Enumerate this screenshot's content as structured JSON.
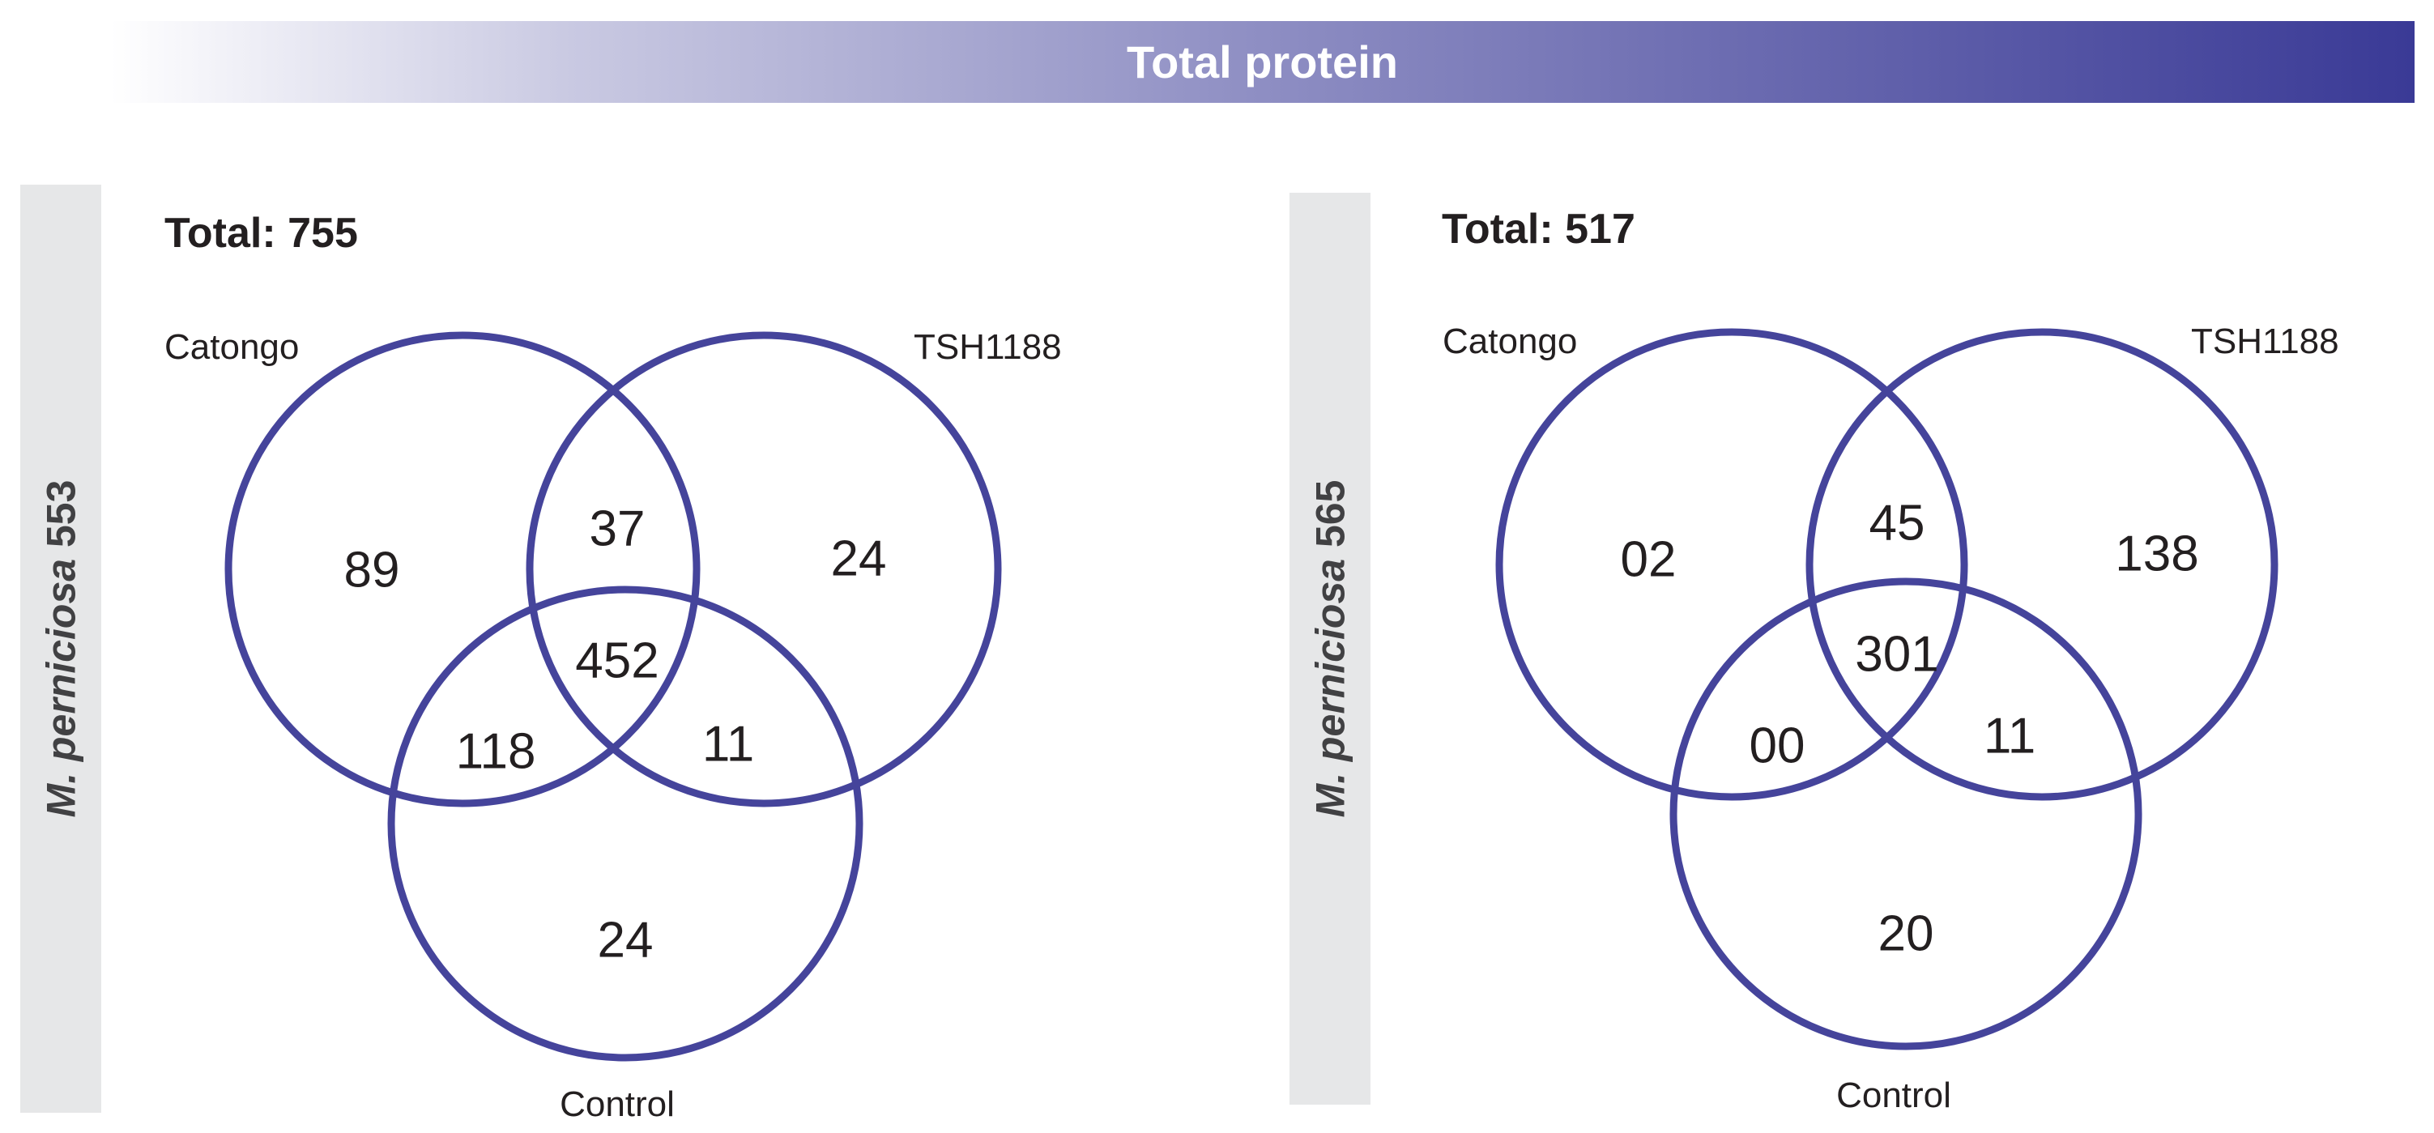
{
  "header": {
    "title": "Total protein"
  },
  "panels": [
    {
      "side_label_italic": "M. perniciosa",
      "side_label_num": "553",
      "total": "Total: 755",
      "labels": {
        "a": "Catongo",
        "b": "TSH1188",
        "c": "Control"
      },
      "counts": {
        "a_only": "89",
        "ab": "37",
        "b_only": "24",
        "abc": "452",
        "ac": "118",
        "bc": "11",
        "c_only": "24"
      }
    },
    {
      "side_label_italic": "M. perniciosa",
      "side_label_num": "565",
      "total": "Total: 517",
      "labels": {
        "a": "Catongo",
        "b": "TSH1188",
        "c": "Control"
      },
      "counts": {
        "a_only": "02",
        "ab": "45",
        "b_only": "138",
        "abc": "301",
        "ac": "00",
        "bc": "11",
        "c_only": "20"
      }
    }
  ],
  "colors": {
    "circle_stroke": "#45449b",
    "banner_end": "#3a3a96",
    "side_bar": "#e6e7e8"
  }
}
